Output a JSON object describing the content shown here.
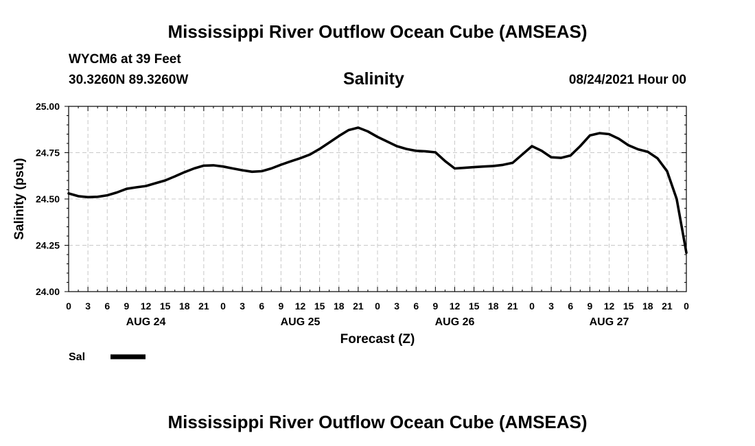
{
  "header": {
    "title_top": "Mississippi River Outflow Ocean Cube (AMSEAS)",
    "station": "WYCM6 at 39 Feet",
    "coords": "30.3260N  89.3260W",
    "datetime": "08/24/2021 Hour 00",
    "title_bottom": "Mississippi River Outflow Ocean Cube (AMSEAS)"
  },
  "chart_data": {
    "type": "line",
    "title": "Salinity",
    "xlabel": "Forecast (Z)",
    "ylabel": "Salinity (psu)",
    "ylim": [
      24.0,
      25.0
    ],
    "xlim_hours": [
      0,
      96
    ],
    "yticks": [
      24.0,
      24.25,
      24.5,
      24.75,
      25.0
    ],
    "ytick_labels": [
      "24.00",
      "24.25",
      "24.50",
      "24.75",
      "25.00"
    ],
    "xtick_hours": [
      0,
      3,
      6,
      9,
      12,
      15,
      18,
      21,
      24,
      27,
      30,
      33,
      36,
      39,
      42,
      45,
      48,
      51,
      54,
      57,
      60,
      63,
      66,
      69,
      72,
      75,
      78,
      81,
      84,
      87,
      90,
      93,
      96
    ],
    "xtick_labels": [
      "0",
      "3",
      "6",
      "9",
      "12",
      "15",
      "18",
      "21",
      "0",
      "3",
      "6",
      "9",
      "12",
      "15",
      "18",
      "21",
      "0",
      "3",
      "6",
      "9",
      "12",
      "15",
      "18",
      "21",
      "0",
      "3",
      "6",
      "9",
      "12",
      "15",
      "18",
      "21",
      "0"
    ],
    "date_labels": [
      {
        "text": "AUG 24",
        "hour": 12
      },
      {
        "text": "AUG 25",
        "hour": 36
      },
      {
        "text": "AUG 26",
        "hour": 60
      },
      {
        "text": "AUG 27",
        "hour": 84
      }
    ],
    "grid": true,
    "series": [
      {
        "name": "Sal",
        "color": "#000000",
        "x": [
          0,
          1.5,
          3,
          4.5,
          6,
          7.5,
          9,
          10.5,
          12,
          13.5,
          15,
          16.5,
          18,
          19.5,
          21,
          22.5,
          24,
          25.5,
          27,
          28.5,
          30,
          31.5,
          33,
          34.5,
          36,
          37.5,
          39,
          40.5,
          42,
          43.5,
          45,
          46.5,
          48,
          49.5,
          51,
          52.5,
          54,
          55.5,
          57,
          58.5,
          60,
          61.5,
          63,
          64.5,
          66,
          67.5,
          69,
          70.5,
          72,
          73.5,
          75,
          76.5,
          78,
          79.5,
          81,
          82.5,
          84,
          85.5,
          87,
          88.5,
          90,
          91.5,
          93,
          94.5,
          96
        ],
        "values": [
          24.53,
          24.515,
          24.51,
          24.512,
          24.52,
          24.535,
          24.555,
          24.563,
          24.57,
          24.585,
          24.6,
          24.622,
          24.645,
          24.665,
          24.68,
          24.682,
          24.675,
          24.665,
          24.655,
          24.647,
          24.65,
          24.665,
          24.685,
          24.703,
          24.72,
          24.74,
          24.77,
          24.805,
          24.84,
          24.872,
          24.885,
          24.865,
          24.835,
          24.81,
          24.785,
          24.77,
          24.76,
          24.757,
          24.752,
          24.705,
          24.665,
          24.668,
          24.672,
          24.675,
          24.678,
          24.684,
          24.695,
          24.74,
          24.785,
          24.76,
          24.725,
          24.722,
          24.735,
          24.785,
          24.843,
          24.855,
          24.85,
          24.825,
          24.79,
          24.768,
          24.755,
          24.72,
          24.65,
          24.5,
          24.21
        ]
      }
    ],
    "legend": {
      "position": "bottom-left",
      "label": "Sal"
    }
  }
}
